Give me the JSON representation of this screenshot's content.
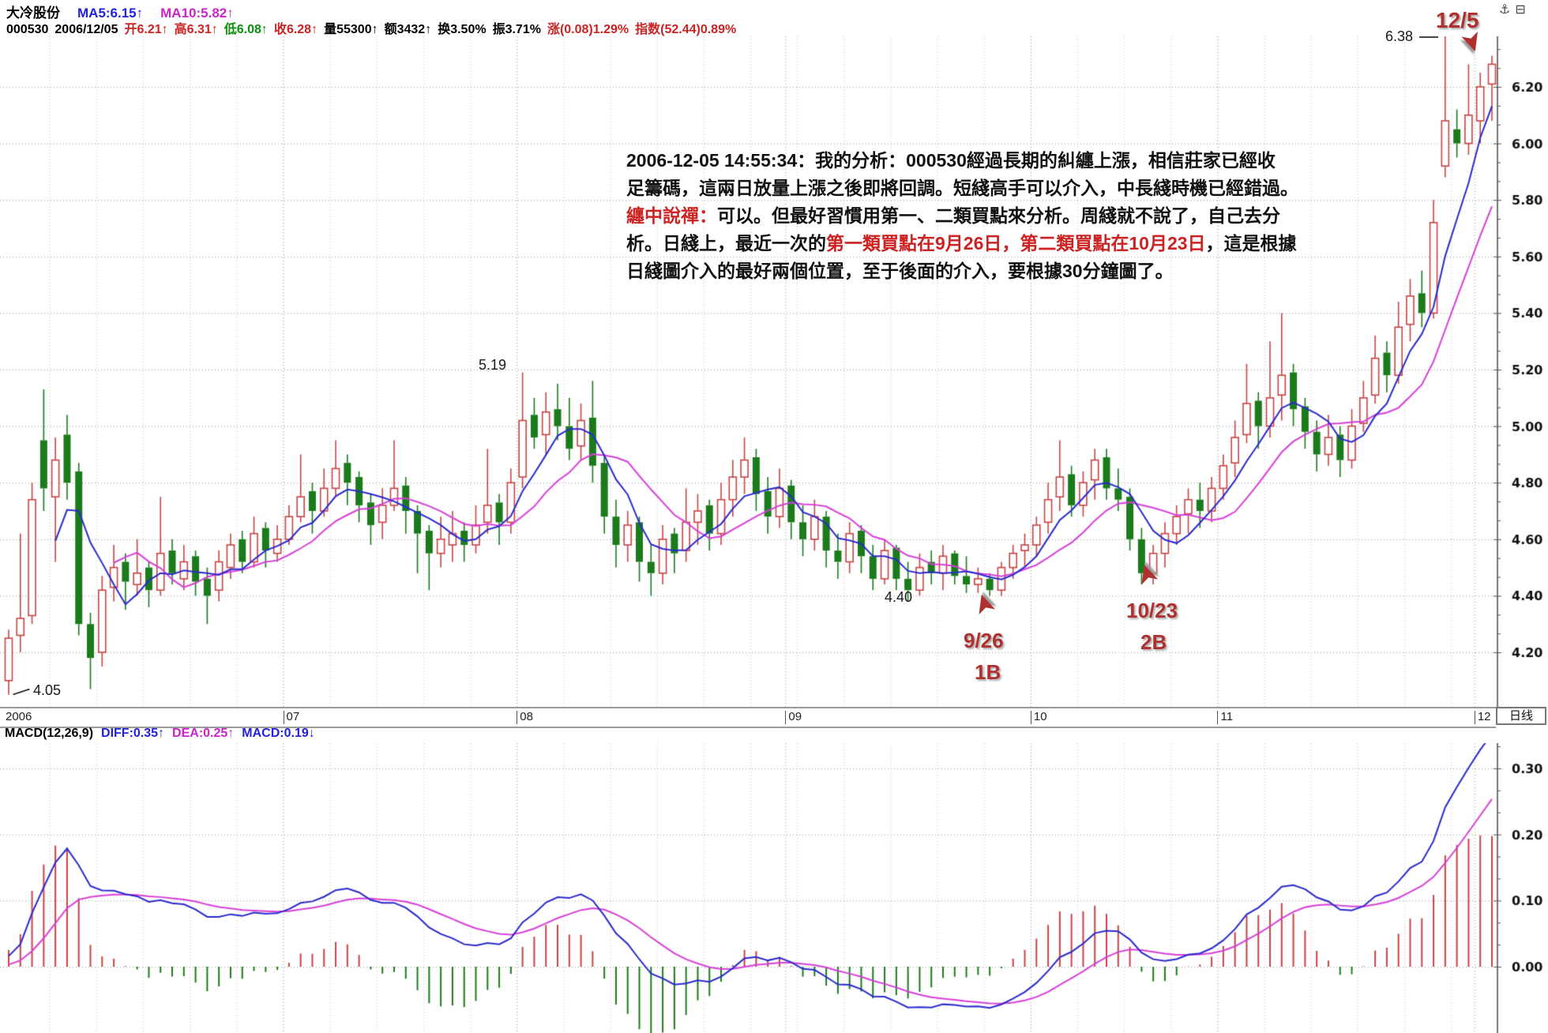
{
  "header": {
    "line1": [
      [
        "大冷股份",
        "k"
      ],
      [
        "MA5:6.15↑",
        "b"
      ],
      [
        "MA10:5.82↑",
        "m"
      ]
    ],
    "line2": [
      [
        "000530",
        "k"
      ],
      [
        "2006/12/05",
        "k"
      ],
      [
        "开6.21↑",
        "r"
      ],
      [
        "高6.31↑",
        "r"
      ],
      [
        "低6.08↑",
        "g"
      ],
      [
        "收6.28↑",
        "r"
      ],
      [
        "量55300↑",
        "k"
      ],
      [
        "额3432↑",
        "k"
      ],
      [
        "换3.50%",
        "k"
      ],
      [
        "振3.71%",
        "k"
      ],
      [
        "涨(0.08)1.29%",
        "r"
      ],
      [
        "指数(52.44)0.89%",
        "r"
      ]
    ]
  },
  "macd_header": [
    [
      "MACD(12,26,9)",
      "k"
    ],
    [
      "DIFF:0.35↑",
      "b"
    ],
    [
      "DEA:0.25↑",
      "m"
    ],
    [
      "MACD:0.19↓",
      "b"
    ]
  ],
  "axis_strip": {
    "year": "2006",
    "period_label": "日线"
  },
  "icons": {
    "anchor": "⚓",
    "window": "⊟"
  },
  "right_axis": {
    "price_ticks": [
      6.2,
      6.0,
      5.8,
      5.6,
      5.4,
      5.2,
      5.0,
      4.8,
      4.6,
      4.4,
      4.2
    ],
    "macd_ticks": [
      0.3,
      0.2,
      0.1,
      0.0
    ]
  },
  "annotations": {
    "low_label": "4.05",
    "peak_label": "5.19",
    "mid_low_label": "4.40",
    "high_label": "6.38",
    "flag_date": "12/5",
    "buy1": {
      "date": "9/26",
      "code": "1B"
    },
    "buy2": {
      "date": "10/23",
      "code": "2B"
    },
    "arrow_glyph": "➤"
  },
  "analysis_note": {
    "lines": [
      [
        [
          "2006-12-05 14:55:34：我的分析：000530經過長期的糾纏上漲，相信莊家已經收",
          "k"
        ]
      ],
      [
        [
          "足籌碼，這兩日放量上漲之後即將回調。短綫高手可以介入，中長綫時機已經錯過。",
          "k"
        ]
      ],
      [
        [
          "纏中說禪：",
          "r"
        ],
        [
          "可以。但最好習慣用第一、二類買點來分析。周綫就不說了，自己去分",
          "k"
        ]
      ],
      [
        [
          "析。日綫上，最近一次的",
          "k"
        ],
        [
          "第一類買點在9月26日，",
          "r"
        ],
        [
          "第二類買點在10月23日",
          "r"
        ],
        [
          "，這是根據",
          "k"
        ]
      ],
      [
        [
          "日綫圖介入的最好兩個位置，至于後面的介入，要根據30分鐘圖了。",
          "k"
        ]
      ]
    ]
  },
  "colors": {
    "up": "#c94343",
    "down": "#1b7a1b",
    "ma5": "#2a2ad0",
    "ma10": "#d93fd9",
    "red_text": "#cc2222",
    "green_text": "#0a8f0a",
    "blue_text": "#2222dd",
    "magenta_text": "#cc22cc",
    "annotation": "#b03030"
  },
  "chart_data": {
    "type": "candlestick+macd",
    "symbol": "000530",
    "name": "大冷股份",
    "date": "2006/12/05",
    "period": "daily",
    "x_axis_months": [
      "2006",
      "07",
      "08",
      "09",
      "10",
      "11",
      "12"
    ],
    "month_starts": [
      {
        "label": "07",
        "index": 24
      },
      {
        "label": "08",
        "index": 44
      },
      {
        "label": "09",
        "index": 67
      },
      {
        "label": "10",
        "index": 88
      },
      {
        "label": "11",
        "index": 104
      },
      {
        "label": "12",
        "index": 126
      }
    ],
    "indicators": {
      "ma": [
        5,
        10
      ],
      "macd": [
        12,
        26,
        9
      ]
    },
    "price_axis": {
      "min": 4.01,
      "max": 6.37,
      "tick_step": 0.2
    },
    "macd_axis": {
      "min": -0.1,
      "max": 0.34,
      "tick_step": 0.1
    },
    "last_values": {
      "ma5": 6.15,
      "ma10": 5.82,
      "open": 6.21,
      "high": 6.31,
      "low": 6.08,
      "close": 6.28,
      "volume": 55300,
      "amount": 3432,
      "turnover_pct": 3.5,
      "amplitude_pct": 3.71,
      "change": "(0.08)1.29%",
      "index": "(52.44)0.89%",
      "diff": 0.35,
      "dea": 0.25,
      "macd": 0.19
    },
    "key_points": {
      "start_low": 4.05,
      "aug_peak": 5.19,
      "sep_low": 4.4,
      "buy1_date": "9/26",
      "buy2_date": "10/23",
      "high": 6.38,
      "last_day": "12/5"
    },
    "ohlc": [
      [
        4.1,
        4.28,
        4.05,
        4.25
      ],
      [
        4.26,
        4.62,
        4.2,
        4.32
      ],
      [
        4.33,
        4.8,
        4.3,
        4.74
      ],
      [
        4.95,
        5.13,
        4.7,
        4.78
      ],
      [
        4.75,
        4.96,
        4.52,
        4.88
      ],
      [
        4.97,
        5.04,
        4.74,
        4.8
      ],
      [
        4.84,
        4.87,
        4.26,
        4.3
      ],
      [
        4.3,
        4.34,
        4.07,
        4.18
      ],
      [
        4.2,
        4.47,
        4.15,
        4.42
      ],
      [
        4.43,
        4.58,
        4.38,
        4.5
      ],
      [
        4.52,
        4.55,
        4.35,
        4.45
      ],
      [
        4.44,
        4.6,
        4.4,
        4.48
      ],
      [
        4.5,
        4.52,
        4.36,
        4.42
      ],
      [
        4.42,
        4.75,
        4.4,
        4.55
      ],
      [
        4.56,
        4.6,
        4.44,
        4.48
      ],
      [
        4.46,
        4.58,
        4.42,
        4.52
      ],
      [
        4.54,
        4.56,
        4.4,
        4.45
      ],
      [
        4.46,
        4.5,
        4.3,
        4.4
      ],
      [
        4.42,
        4.56,
        4.38,
        4.52
      ],
      [
        4.5,
        4.62,
        4.46,
        4.58
      ],
      [
        4.6,
        4.63,
        4.48,
        4.52
      ],
      [
        4.52,
        4.68,
        4.5,
        4.62
      ],
      [
        4.64,
        4.66,
        4.5,
        4.56
      ],
      [
        4.55,
        4.65,
        4.52,
        4.6
      ],
      [
        4.6,
        4.72,
        4.58,
        4.68
      ],
      [
        4.68,
        4.9,
        4.66,
        4.75
      ],
      [
        4.77,
        4.8,
        4.62,
        4.7
      ],
      [
        4.7,
        4.85,
        4.68,
        4.78
      ],
      [
        4.78,
        4.95,
        4.75,
        4.85
      ],
      [
        4.87,
        4.9,
        4.72,
        4.8
      ],
      [
        4.82,
        4.84,
        4.66,
        4.72
      ],
      [
        4.73,
        4.76,
        4.58,
        4.65
      ],
      [
        4.66,
        4.78,
        4.6,
        4.72
      ],
      [
        4.72,
        4.95,
        4.7,
        4.78
      ],
      [
        4.79,
        4.82,
        4.62,
        4.7
      ],
      [
        4.7,
        4.72,
        4.48,
        4.62
      ],
      [
        4.63,
        4.65,
        4.42,
        4.55
      ],
      [
        4.55,
        4.68,
        4.5,
        4.6
      ],
      [
        4.58,
        4.7,
        4.52,
        4.62
      ],
      [
        4.63,
        4.66,
        4.52,
        4.58
      ],
      [
        4.58,
        4.72,
        4.55,
        4.65
      ],
      [
        4.66,
        4.92,
        4.62,
        4.72
      ],
      [
        4.73,
        4.76,
        4.58,
        4.66
      ],
      [
        4.66,
        4.85,
        4.62,
        4.8
      ],
      [
        4.82,
        5.19,
        4.78,
        5.02
      ],
      [
        5.04,
        5.1,
        4.92,
        4.96
      ],
      [
        4.97,
        5.12,
        4.9,
        5.05
      ],
      [
        5.06,
        5.15,
        4.95,
        5.0
      ],
      [
        5.0,
        5.1,
        4.88,
        4.92
      ],
      [
        4.93,
        5.08,
        4.88,
        5.02
      ],
      [
        5.03,
        5.16,
        4.8,
        4.86
      ],
      [
        4.87,
        4.9,
        4.62,
        4.68
      ],
      [
        4.68,
        4.74,
        4.5,
        4.58
      ],
      [
        4.58,
        4.7,
        4.52,
        4.65
      ],
      [
        4.66,
        4.68,
        4.45,
        4.52
      ],
      [
        4.52,
        4.58,
        4.4,
        4.48
      ],
      [
        4.48,
        4.65,
        4.44,
        4.6
      ],
      [
        4.62,
        4.64,
        4.48,
        4.55
      ],
      [
        4.56,
        4.78,
        4.52,
        4.66
      ],
      [
        4.66,
        4.76,
        4.58,
        4.7
      ],
      [
        4.72,
        4.74,
        4.56,
        4.62
      ],
      [
        4.62,
        4.8,
        4.58,
        4.74
      ],
      [
        4.74,
        4.88,
        4.68,
        4.82
      ],
      [
        4.82,
        4.96,
        4.76,
        4.88
      ],
      [
        4.89,
        4.92,
        4.7,
        4.76
      ],
      [
        4.77,
        4.82,
        4.62,
        4.68
      ],
      [
        4.68,
        4.85,
        4.64,
        4.78
      ],
      [
        4.79,
        4.81,
        4.6,
        4.66
      ],
      [
        4.66,
        4.72,
        4.54,
        4.6
      ],
      [
        4.6,
        4.74,
        4.56,
        4.68
      ],
      [
        4.68,
        4.7,
        4.5,
        4.56
      ],
      [
        4.56,
        4.62,
        4.46,
        4.52
      ],
      [
        4.52,
        4.66,
        4.48,
        4.62
      ],
      [
        4.63,
        4.65,
        4.48,
        4.54
      ],
      [
        4.54,
        4.58,
        4.42,
        4.46
      ],
      [
        4.46,
        4.6,
        4.44,
        4.56
      ],
      [
        4.57,
        4.58,
        4.42,
        4.46
      ],
      [
        4.46,
        4.52,
        4.38,
        4.42
      ],
      [
        4.42,
        4.55,
        4.4,
        4.5
      ],
      [
        4.52,
        4.56,
        4.44,
        4.48
      ],
      [
        4.48,
        4.58,
        4.42,
        4.54
      ],
      [
        4.55,
        4.56,
        4.44,
        4.47
      ],
      [
        4.47,
        4.54,
        4.41,
        4.44
      ],
      [
        4.44,
        4.5,
        4.41,
        4.46
      ],
      [
        4.46,
        4.48,
        4.4,
        4.42
      ],
      [
        4.42,
        4.52,
        4.4,
        4.5
      ],
      [
        4.5,
        4.58,
        4.46,
        4.55
      ],
      [
        4.56,
        4.62,
        4.5,
        4.58
      ],
      [
        4.58,
        4.68,
        4.54,
        4.65
      ],
      [
        4.66,
        4.8,
        4.62,
        4.74
      ],
      [
        4.75,
        4.95,
        4.7,
        4.82
      ],
      [
        4.83,
        4.86,
        4.68,
        4.72
      ],
      [
        4.72,
        4.84,
        4.68,
        4.8
      ],
      [
        4.81,
        4.92,
        4.74,
        4.88
      ],
      [
        4.89,
        4.92,
        4.74,
        4.78
      ],
      [
        4.78,
        4.85,
        4.7,
        4.74
      ],
      [
        4.75,
        4.78,
        4.56,
        4.6
      ],
      [
        4.6,
        4.64,
        4.44,
        4.48
      ],
      [
        4.48,
        4.58,
        4.44,
        4.55
      ],
      [
        4.55,
        4.66,
        4.5,
        4.62
      ],
      [
        4.62,
        4.72,
        4.58,
        4.68
      ],
      [
        4.69,
        4.78,
        4.62,
        4.74
      ],
      [
        4.74,
        4.8,
        4.64,
        4.7
      ],
      [
        4.7,
        4.82,
        4.66,
        4.78
      ],
      [
        4.78,
        4.9,
        4.74,
        4.86
      ],
      [
        4.87,
        5.02,
        4.82,
        4.96
      ],
      [
        4.97,
        5.22,
        4.94,
        5.08
      ],
      [
        5.09,
        5.12,
        4.92,
        5.0
      ],
      [
        5.0,
        5.3,
        4.96,
        5.1
      ],
      [
        5.11,
        5.4,
        5.02,
        5.18
      ],
      [
        5.19,
        5.22,
        5.0,
        5.06
      ],
      [
        5.07,
        5.1,
        4.92,
        4.98
      ],
      [
        4.98,
        5.02,
        4.84,
        4.9
      ],
      [
        4.9,
        5.04,
        4.86,
        4.96
      ],
      [
        4.97,
        5.0,
        4.82,
        4.88
      ],
      [
        4.88,
        5.06,
        4.85,
        5.0
      ],
      [
        5.01,
        5.16,
        4.98,
        5.1
      ],
      [
        5.11,
        5.32,
        5.08,
        5.24
      ],
      [
        5.26,
        5.3,
        5.12,
        5.18
      ],
      [
        5.18,
        5.44,
        5.15,
        5.35
      ],
      [
        5.36,
        5.52,
        5.3,
        5.46
      ],
      [
        5.47,
        5.55,
        5.35,
        5.4
      ],
      [
        5.4,
        5.8,
        5.38,
        5.72
      ],
      [
        5.92,
        6.38,
        5.88,
        6.08
      ],
      [
        6.05,
        6.12,
        5.95,
        6.0
      ],
      [
        6.0,
        6.28,
        5.96,
        6.1
      ],
      [
        6.08,
        6.25,
        6.0,
        6.2
      ],
      [
        6.21,
        6.31,
        6.08,
        6.28
      ]
    ]
  }
}
